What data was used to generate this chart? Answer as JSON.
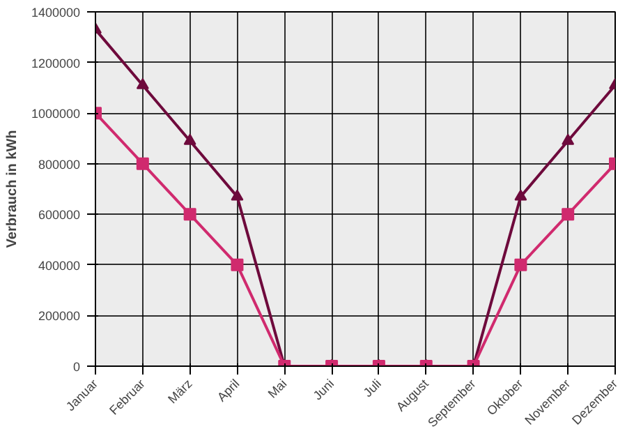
{
  "chart_data": {
    "type": "line",
    "ylabel": "Verbrauch in kWh",
    "categories": [
      "Januar",
      "Februar",
      "März",
      "April",
      "Mai",
      "Juni",
      "Juli",
      "August",
      "September",
      "Oktober",
      "November",
      "Dezember"
    ],
    "series": [
      {
        "color": "#6e0a3c",
        "marker": "triangle",
        "values": [
          1330000,
          1110000,
          890000,
          670000,
          0,
          0,
          0,
          0,
          0,
          670000,
          890000,
          1110000
        ]
      },
      {
        "color": "#d02a6e",
        "marker": "square",
        "values": [
          1000000,
          800000,
          600000,
          400000,
          0,
          0,
          0,
          0,
          0,
          400000,
          600000,
          800000
        ]
      }
    ],
    "ylim": [
      0,
      1400000
    ],
    "yticks": [
      0,
      200000,
      400000,
      600000,
      800000,
      1000000,
      1200000,
      1400000
    ],
    "grid": true,
    "line_style": "solid"
  }
}
